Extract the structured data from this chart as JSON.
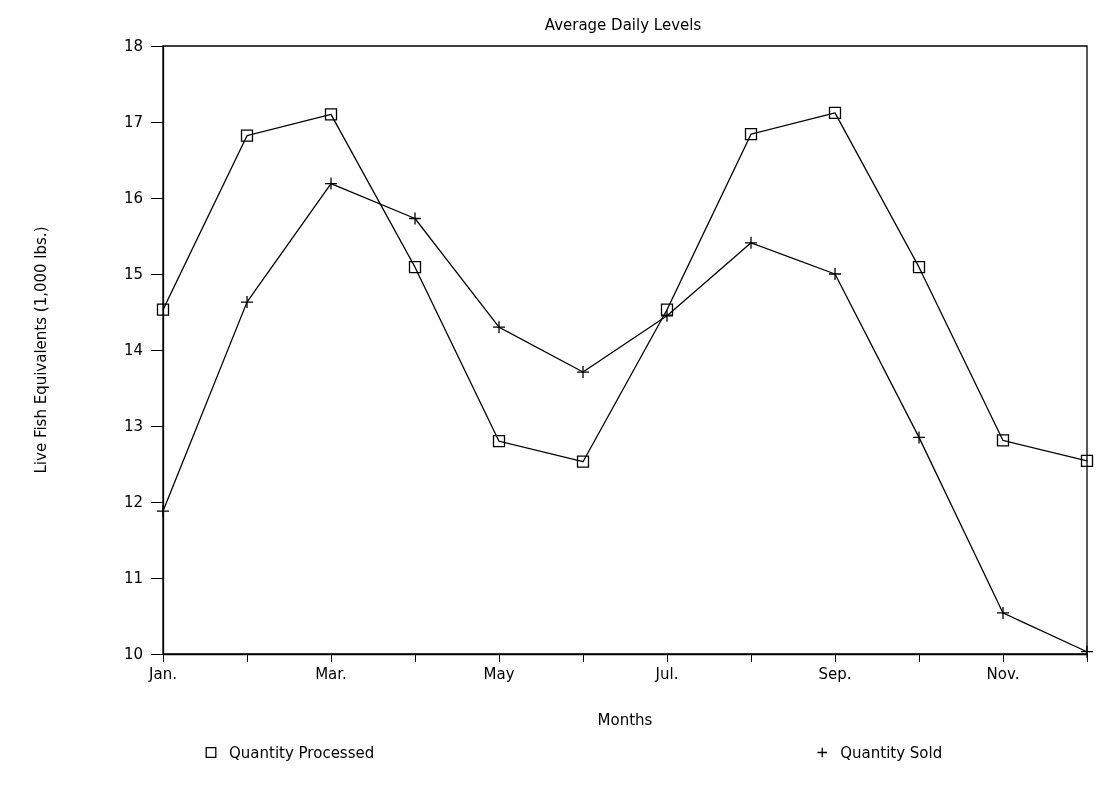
{
  "chart_data": {
    "type": "line",
    "title": "Average Daily Levels",
    "xlabel": "Months",
    "ylabel": "Live Fish Equivalents (1,000 lbs.)",
    "categories": [
      "Jan.",
      null,
      "Mar.",
      null,
      "May",
      null,
      "Jul.",
      null,
      "Sep.",
      null,
      "Nov.",
      null
    ],
    "series": [
      {
        "name": "Quantity Processed",
        "color": "#000000",
        "marker": "square",
        "values": [
          14.53,
          16.82,
          17.1,
          15.09,
          12.8,
          12.53,
          14.53,
          16.84,
          17.12,
          15.09,
          12.81,
          12.54
        ]
      },
      {
        "name": "Quantity Sold",
        "color": "#000000",
        "marker": "cross",
        "values": [
          11.88,
          14.63,
          16.19,
          15.73,
          14.3,
          13.71,
          14.45,
          15.41,
          15.0,
          12.85,
          10.54,
          10.03
        ]
      }
    ],
    "ylim": [
      10,
      18
    ],
    "yticks": [
      10,
      11,
      12,
      13,
      14,
      15,
      16,
      17,
      18
    ],
    "grid": false,
    "legend": "bottom",
    "line_style": "solid"
  }
}
